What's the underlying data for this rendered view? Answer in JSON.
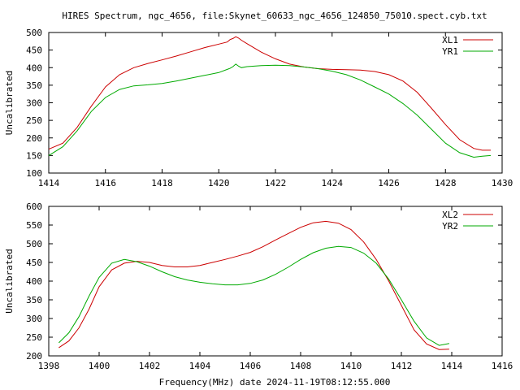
{
  "title": "HIRES Spectrum, ngc_4656, file:Skynet_60633_ngc_4656_124850_75010.spect.cyb.txt",
  "footer": "Frequency(MHz) date 2024-11-19T08:12:55.000",
  "colors": {
    "red": "#cc0000",
    "green": "#00aa00",
    "frame": "#000000"
  },
  "chart_data": [
    {
      "type": "line",
      "ylabel": "Uncalibrated",
      "xlim": [
        1414,
        1430
      ],
      "ylim": [
        100,
        500
      ],
      "xticks": [
        1414,
        1416,
        1418,
        1420,
        1422,
        1424,
        1426,
        1428,
        1430
      ],
      "yticks": [
        100,
        150,
        200,
        250,
        300,
        350,
        400,
        450,
        500
      ],
      "legend_position": "top-right",
      "series": [
        {
          "name": "XL1",
          "color": "#cc0000",
          "x": [
            1414.0,
            1414.5,
            1415.0,
            1415.5,
            1416.0,
            1416.5,
            1417.0,
            1417.5,
            1418.0,
            1418.5,
            1419.0,
            1419.5,
            1420.0,
            1420.3,
            1420.4,
            1420.5,
            1420.6,
            1420.7,
            1420.8,
            1421.0,
            1421.5,
            1422.0,
            1422.5,
            1423.0,
            1423.5,
            1424.0,
            1424.5,
            1425.0,
            1425.5,
            1426.0,
            1426.5,
            1427.0,
            1427.5,
            1428.0,
            1428.5,
            1429.0,
            1429.3,
            1429.6
          ],
          "y": [
            168,
            185,
            230,
            290,
            345,
            380,
            400,
            412,
            422,
            433,
            445,
            457,
            467,
            473,
            480,
            483,
            488,
            484,
            478,
            468,
            444,
            425,
            410,
            402,
            397,
            395,
            394,
            393,
            389,
            380,
            362,
            330,
            285,
            238,
            195,
            170,
            165,
            165
          ]
        },
        {
          "name": "YR1",
          "color": "#00aa00",
          "x": [
            1414.0,
            1414.5,
            1415.0,
            1415.5,
            1416.0,
            1416.5,
            1417.0,
            1417.5,
            1418.0,
            1418.5,
            1419.0,
            1419.5,
            1420.0,
            1420.3,
            1420.4,
            1420.5,
            1420.6,
            1420.7,
            1420.8,
            1421.0,
            1421.5,
            1422.0,
            1422.5,
            1423.0,
            1423.5,
            1424.0,
            1424.5,
            1425.0,
            1425.5,
            1426.0,
            1426.5,
            1427.0,
            1427.5,
            1428.0,
            1428.5,
            1429.0,
            1429.3,
            1429.6
          ],
          "y": [
            150,
            175,
            220,
            275,
            315,
            338,
            348,
            351,
            355,
            362,
            370,
            378,
            386,
            395,
            398,
            403,
            410,
            404,
            400,
            403,
            406,
            407,
            406,
            402,
            397,
            390,
            380,
            365,
            345,
            325,
            298,
            265,
            225,
            185,
            158,
            145,
            148,
            150
          ]
        }
      ]
    },
    {
      "type": "line",
      "ylabel": "Uncalibrated",
      "xlim": [
        1398,
        1416
      ],
      "ylim": [
        200,
        600
      ],
      "xticks": [
        1398,
        1400,
        1402,
        1404,
        1406,
        1408,
        1410,
        1412,
        1414,
        1416
      ],
      "yticks": [
        200,
        250,
        300,
        350,
        400,
        450,
        500,
        550,
        600
      ],
      "legend_position": "top-right",
      "series": [
        {
          "name": "XL2",
          "color": "#cc0000",
          "x": [
            1398.4,
            1398.8,
            1399.2,
            1399.6,
            1400.0,
            1400.5,
            1401.0,
            1401.5,
            1402.0,
            1402.5,
            1403.0,
            1403.5,
            1404.0,
            1404.5,
            1405.0,
            1405.5,
            1406.0,
            1406.5,
            1407.0,
            1407.5,
            1408.0,
            1408.5,
            1409.0,
            1409.5,
            1410.0,
            1410.5,
            1411.0,
            1411.5,
            1412.0,
            1412.5,
            1413.0,
            1413.5,
            1413.9
          ],
          "y": [
            222,
            240,
            275,
            325,
            385,
            430,
            448,
            453,
            450,
            442,
            438,
            438,
            442,
            450,
            458,
            467,
            477,
            492,
            510,
            527,
            544,
            556,
            560,
            555,
            538,
            505,
            458,
            400,
            335,
            270,
            232,
            217,
            218
          ]
        },
        {
          "name": "YR2",
          "color": "#00aa00",
          "x": [
            1398.4,
            1398.8,
            1399.2,
            1399.6,
            1400.0,
            1400.5,
            1401.0,
            1401.5,
            1402.0,
            1402.5,
            1403.0,
            1403.5,
            1404.0,
            1404.5,
            1405.0,
            1405.5,
            1406.0,
            1406.5,
            1407.0,
            1407.5,
            1408.0,
            1408.5,
            1409.0,
            1409.5,
            1410.0,
            1410.5,
            1411.0,
            1411.5,
            1412.0,
            1412.5,
            1413.0,
            1413.5,
            1413.9
          ],
          "y": [
            235,
            262,
            305,
            360,
            410,
            448,
            458,
            452,
            440,
            425,
            412,
            403,
            397,
            393,
            390,
            390,
            394,
            403,
            418,
            437,
            458,
            476,
            488,
            493,
            490,
            475,
            448,
            405,
            350,
            293,
            248,
            228,
            233
          ]
        }
      ]
    }
  ]
}
